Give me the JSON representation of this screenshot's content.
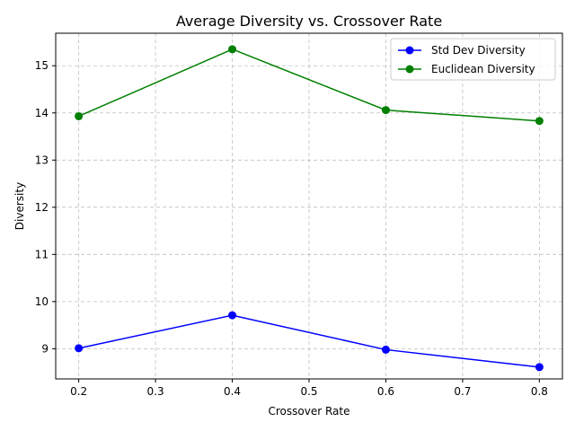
{
  "chart_data": {
    "type": "line",
    "title": "Average Diversity vs. Crossover Rate",
    "xlabel": "Crossover Rate",
    "ylabel": "Diversity",
    "x": [
      0.2,
      0.4,
      0.6,
      0.8
    ],
    "xlim": [
      0.17,
      0.83
    ],
    "ylim": [
      8.36,
      15.69
    ],
    "xticks": [
      0.2,
      0.3,
      0.4,
      0.5,
      0.6,
      0.7,
      0.8
    ],
    "xtick_labels": [
      "0.2",
      "0.3",
      "0.4",
      "0.5",
      "0.6",
      "0.7",
      "0.8"
    ],
    "yticks": [
      9,
      10,
      11,
      12,
      13,
      14,
      15
    ],
    "ytick_labels": [
      "9",
      "10",
      "11",
      "12",
      "13",
      "14",
      "15"
    ],
    "grid": true,
    "legend_position": "top-right",
    "series": [
      {
        "name": "Std Dev Diversity",
        "values": [
          9.01,
          9.71,
          8.98,
          8.61
        ],
        "color": "#0000ff",
        "marker": "circle"
      },
      {
        "name": "Euclidean Diversity",
        "values": [
          13.93,
          15.35,
          14.06,
          13.83
        ],
        "color": "#008000",
        "marker": "circle"
      }
    ]
  }
}
